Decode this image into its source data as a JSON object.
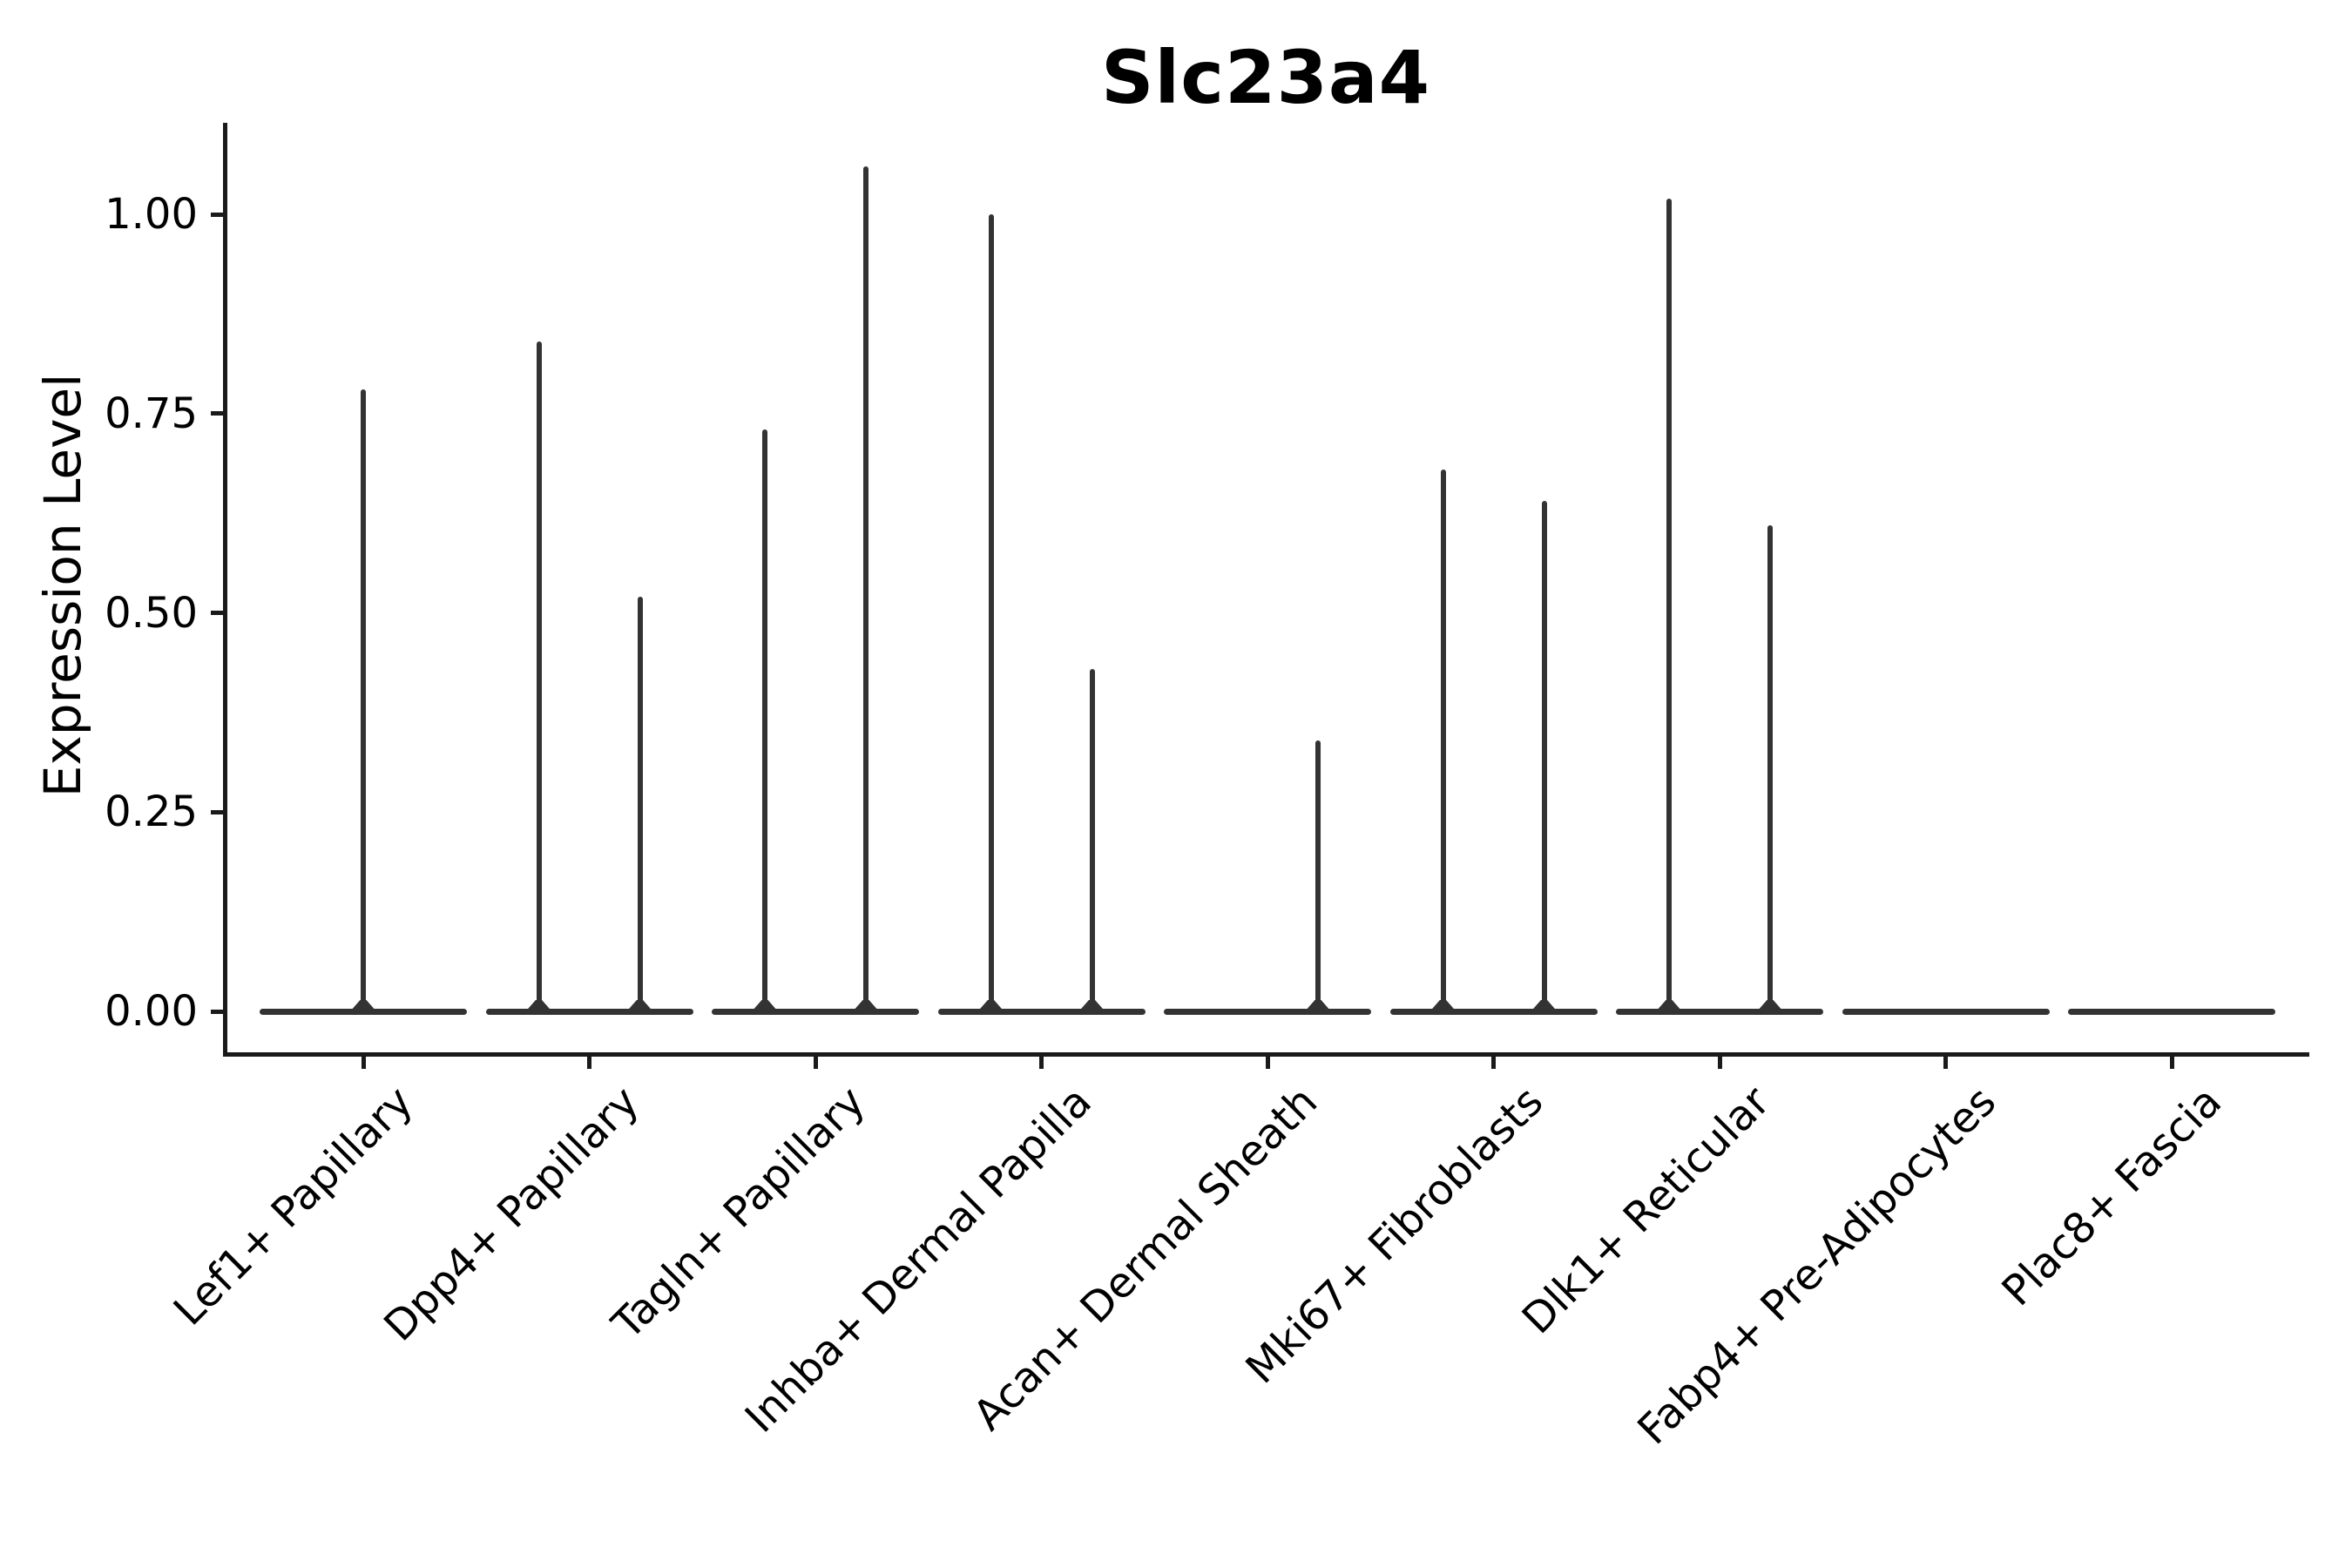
{
  "chart_data": {
    "type": "violin",
    "title": "Slc23a4",
    "ylabel": "Expression Level",
    "xlabel": "",
    "grid": false,
    "legend": null,
    "ylim": [
      -0.05,
      1.12
    ],
    "yticks": [
      {
        "value": 0.0,
        "label": "0.00"
      },
      {
        "value": 0.25,
        "label": "0.25"
      },
      {
        "value": 0.5,
        "label": "0.50"
      },
      {
        "value": 0.75,
        "label": "0.75"
      },
      {
        "value": 1.0,
        "label": "1.00"
      }
    ],
    "categories": [
      "Lef1+ Papillary",
      "Dpp4+ Papillary",
      "Tagln+ Papillary",
      "Inhba+ Dermal Papilla",
      "Acan+ Dermal Sheath",
      "Mki67+ Fibroblasts",
      "Dlk1+ Reticular",
      "Fabp4+ Pre-Adipocytes",
      "Plac8+ Fascia"
    ],
    "violins": [
      {
        "category": "Lef1+ Papillary",
        "spikes": [
          {
            "pos": "center",
            "max": 0.78
          }
        ]
      },
      {
        "category": "Dpp4+ Papillary",
        "spikes": [
          {
            "pos": "left",
            "max": 0.84
          },
          {
            "pos": "right",
            "max": 0.52
          }
        ]
      },
      {
        "category": "Tagln+ Papillary",
        "spikes": [
          {
            "pos": "left",
            "max": 0.73
          },
          {
            "pos": "right",
            "max": 1.06
          }
        ]
      },
      {
        "category": "Inhba+ Dermal Papilla",
        "spikes": [
          {
            "pos": "left",
            "max": 1.0
          },
          {
            "pos": "right",
            "max": 0.43
          }
        ]
      },
      {
        "category": "Acan+ Dermal Sheath",
        "spikes": [
          {
            "pos": "right",
            "max": 0.34
          }
        ]
      },
      {
        "category": "Mki67+ Fibroblasts",
        "spikes": [
          {
            "pos": "left",
            "max": 0.68
          },
          {
            "pos": "right",
            "max": 0.64
          }
        ]
      },
      {
        "category": "Dlk1+ Reticular",
        "spikes": [
          {
            "pos": "left",
            "max": 1.02
          },
          {
            "pos": "right",
            "max": 0.61
          }
        ]
      },
      {
        "category": "Fabp4+ Pre-Adipocytes",
        "spikes": []
      },
      {
        "category": "Plac8+ Fascia",
        "spikes": []
      }
    ],
    "baseline_value": 0.0,
    "colors": {
      "violin": "#333333",
      "axis": "#1a1a1a",
      "text": "#000000",
      "background": "#ffffff"
    }
  }
}
